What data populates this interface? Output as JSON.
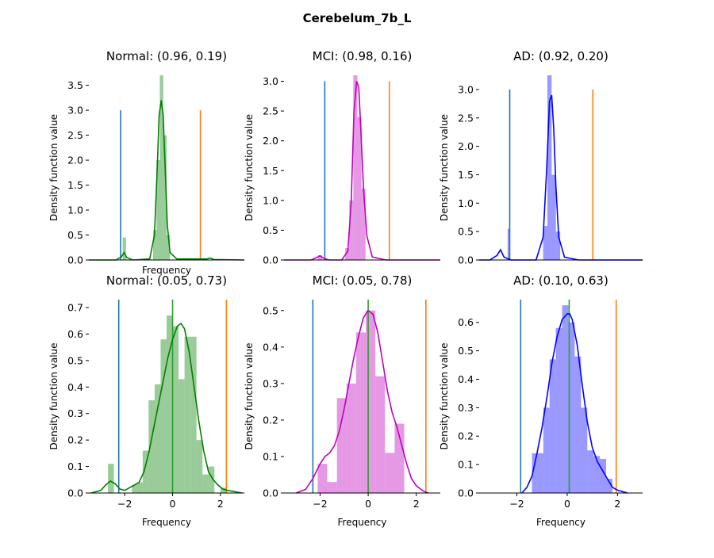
{
  "figure": {
    "title": "Cerebelum_7b_L"
  },
  "colors": {
    "normal": "#008000",
    "mci": "#bf00bf",
    "ad": "#0000ff",
    "vline_blue": "#1f77b4",
    "vline_orange": "#ff7f0e"
  },
  "chart_data": [
    {
      "type": "histogram_kde",
      "title": "Normal: (0.96, 0.19)",
      "xlabel": "Frequency",
      "ylabel": "Density function value",
      "color": "#008000",
      "xlim": [
        -0.1,
        2.2
      ],
      "ylim": [
        0,
        3.7
      ],
      "xticks": [],
      "yticks": [
        0.0,
        0.5,
        1.0,
        1.5,
        2.0,
        2.5,
        3.0,
        3.5
      ],
      "ytick_labels": [
        "0.0",
        "0.5",
        "1.0",
        "1.5",
        "2.0",
        "2.5",
        "3.0",
        "3.5"
      ],
      "vlines": [
        {
          "x": 0.37,
          "ymax": 3.0,
          "color": "#1f77b4"
        },
        {
          "x": 1.55,
          "ymax": 3.0,
          "color": "#ff7f0e"
        }
      ],
      "bars": [
        {
          "x0": 0.4,
          "x1": 0.45,
          "h": 0.45
        },
        {
          "x0": 0.85,
          "x1": 0.9,
          "h": 0.6
        },
        {
          "x0": 0.9,
          "x1": 0.95,
          "h": 2.0
        },
        {
          "x0": 0.95,
          "x1": 1.0,
          "h": 3.7
        },
        {
          "x0": 1.0,
          "x1": 1.05,
          "h": 2.5
        },
        {
          "x0": 1.05,
          "x1": 1.1,
          "h": 0.5
        }
      ],
      "kde": {
        "x": [
          -0.1,
          0.3,
          0.38,
          0.42,
          0.46,
          0.55,
          0.8,
          0.87,
          0.91,
          0.94,
          0.97,
          1.0,
          1.03,
          1.06,
          1.1,
          1.2,
          1.65,
          1.69,
          1.75,
          2.2
        ],
        "y": [
          0,
          0,
          0.06,
          0.15,
          0.05,
          0,
          0.02,
          0.5,
          1.8,
          2.9,
          3.2,
          2.9,
          1.8,
          0.7,
          0.15,
          0.02,
          0.02,
          0.04,
          0.01,
          0
        ]
      }
    },
    {
      "type": "histogram_kde",
      "title": "MCI: (0.98, 0.16)",
      "xlabel": "",
      "ylabel": "Density function value",
      "color": "#bf00bf",
      "xlim": [
        -0.1,
        2.2
      ],
      "ylim": [
        0,
        3.1
      ],
      "xticks": [],
      "yticks": [
        0.0,
        0.5,
        1.0,
        1.5,
        2.0,
        2.5,
        3.0
      ],
      "ytick_labels": [
        "0.0",
        "0.5",
        "1.0",
        "1.5",
        "2.0",
        "2.5",
        "3.0"
      ],
      "vlines": [
        {
          "x": 0.5,
          "ymax": 3.0,
          "color": "#1f77b4"
        },
        {
          "x": 1.45,
          "ymax": 3.0,
          "color": "#ff7f0e"
        }
      ],
      "bars": [
        {
          "x0": 0.4,
          "x1": 0.46,
          "h": 0.08
        },
        {
          "x0": 0.8,
          "x1": 0.86,
          "h": 0.2
        },
        {
          "x0": 0.86,
          "x1": 0.92,
          "h": 1.0
        },
        {
          "x0": 0.92,
          "x1": 0.98,
          "h": 3.1
        },
        {
          "x0": 0.98,
          "x1": 1.04,
          "h": 2.4
        },
        {
          "x0": 1.04,
          "x1": 1.1,
          "h": 1.2
        }
      ],
      "kde": {
        "x": [
          -0.1,
          0.3,
          0.38,
          0.43,
          0.48,
          0.56,
          0.75,
          0.84,
          0.89,
          0.93,
          0.97,
          1.0,
          1.03,
          1.07,
          1.12,
          1.2,
          1.4,
          2.2
        ],
        "y": [
          0,
          0,
          0.04,
          0.07,
          0.03,
          0,
          0,
          0.15,
          1.0,
          2.5,
          3.0,
          2.9,
          2.2,
          1.2,
          0.4,
          0.05,
          0,
          0
        ]
      }
    },
    {
      "type": "histogram_kde",
      "title": "AD: (0.92, 0.20)",
      "xlabel": "",
      "ylabel": "Density function value",
      "color": "#0000ff",
      "xlim": [
        -0.1,
        2.2
      ],
      "ylim": [
        0,
        3.25
      ],
      "xticks": [],
      "yticks": [
        0.0,
        0.5,
        1.0,
        1.5,
        2.0,
        2.5,
        3.0
      ],
      "ytick_labels": [
        "0.0",
        "0.5",
        "1.0",
        "1.5",
        "2.0",
        "2.5",
        "3.0"
      ],
      "vlines": [
        {
          "x": 0.33,
          "ymax": 3.0,
          "color": "#1f77b4"
        },
        {
          "x": 1.5,
          "ymax": 3.0,
          "color": "#ff7f0e"
        }
      ],
      "bars": [
        {
          "x0": 0.3,
          "x1": 0.33,
          "h": 0.55
        },
        {
          "x0": 0.8,
          "x1": 0.86,
          "h": 0.6
        },
        {
          "x0": 0.86,
          "x1": 0.92,
          "h": 3.25
        },
        {
          "x0": 0.92,
          "x1": 0.98,
          "h": 1.5
        },
        {
          "x0": 0.98,
          "x1": 1.04,
          "h": 0.5
        }
      ],
      "kde": {
        "x": [
          -0.1,
          0.05,
          0.15,
          0.2,
          0.25,
          0.35,
          0.7,
          0.8,
          0.85,
          0.89,
          0.92,
          0.95,
          0.98,
          1.02,
          1.1,
          1.3,
          2.2
        ],
        "y": [
          0,
          0,
          0.08,
          0.18,
          0.05,
          0,
          0,
          0.4,
          1.6,
          2.8,
          2.9,
          2.3,
          1.3,
          0.4,
          0.05,
          0,
          0
        ]
      }
    },
    {
      "type": "histogram_kde",
      "title": "Normal: (0.05, 0.73)",
      "xlabel": "Frequency",
      "ylabel": "Density function value",
      "color": "#008000",
      "xlim": [
        -3.5,
        3.0
      ],
      "ylim": [
        0,
        0.73
      ],
      "xticks": [
        -2,
        0,
        2
      ],
      "xtick_labels": [
        "−2",
        "0",
        "2"
      ],
      "yticks": [
        0.0,
        0.1,
        0.2,
        0.3,
        0.4,
        0.5,
        0.6,
        0.7
      ],
      "ytick_labels": [
        "0.0",
        "0.1",
        "0.2",
        "0.3",
        "0.4",
        "0.5",
        "0.6",
        "0.7"
      ],
      "vlines": [
        {
          "x": -2.25,
          "ymax": 0.73,
          "color": "#1f77b4"
        },
        {
          "x": 0.0,
          "ymax": 0.73,
          "color": "#2ca02c"
        },
        {
          "x": 2.25,
          "ymax": 0.73,
          "color": "#ff7f0e"
        }
      ],
      "bars": [
        {
          "x0": -2.7,
          "x1": -2.45,
          "h": 0.11
        },
        {
          "x0": -1.7,
          "x1": -1.5,
          "h": 0.03
        },
        {
          "x0": -1.5,
          "x1": -1.25,
          "h": 0.04
        },
        {
          "x0": -1.25,
          "x1": -1.0,
          "h": 0.16
        },
        {
          "x0": -1.0,
          "x1": -0.75,
          "h": 0.35
        },
        {
          "x0": -0.75,
          "x1": -0.5,
          "h": 0.41
        },
        {
          "x0": -0.5,
          "x1": -0.25,
          "h": 0.58
        },
        {
          "x0": -0.25,
          "x1": 0.0,
          "h": 0.67
        },
        {
          "x0": 0.0,
          "x1": 0.25,
          "h": 0.63
        },
        {
          "x0": 0.25,
          "x1": 0.5,
          "h": 0.43
        },
        {
          "x0": 0.5,
          "x1": 0.75,
          "h": 0.59
        },
        {
          "x0": 0.75,
          "x1": 1.0,
          "h": 0.59
        },
        {
          "x0": 1.0,
          "x1": 1.25,
          "h": 0.2
        },
        {
          "x0": 1.25,
          "x1": 1.5,
          "h": 0.07
        },
        {
          "x0": 1.5,
          "x1": 1.75,
          "h": 0.1
        },
        {
          "x0": 2.0,
          "x1": 2.25,
          "h": 0.02
        }
      ],
      "kde": {
        "x": [
          -3.4,
          -3.0,
          -2.8,
          -2.6,
          -2.4,
          -2.2,
          -2.0,
          -1.8,
          -1.6,
          -1.4,
          -1.2,
          -1.0,
          -0.8,
          -0.6,
          -0.4,
          -0.2,
          0.0,
          0.2,
          0.35,
          0.5,
          0.7,
          0.9,
          1.1,
          1.3,
          1.5,
          1.7,
          1.9,
          2.1,
          2.3,
          2.6,
          2.9
        ],
        "y": [
          0.0,
          0.01,
          0.03,
          0.045,
          0.035,
          0.015,
          0.01,
          0.02,
          0.03,
          0.04,
          0.08,
          0.15,
          0.24,
          0.33,
          0.42,
          0.51,
          0.58,
          0.63,
          0.64,
          0.62,
          0.53,
          0.4,
          0.27,
          0.16,
          0.08,
          0.05,
          0.03,
          0.015,
          0.01,
          0.005,
          0.0
        ]
      }
    },
    {
      "type": "histogram_kde",
      "title": "MCI: (0.05, 0.78)",
      "xlabel": "Frequency",
      "ylabel": "Density function value",
      "color": "#bf00bf",
      "xlim": [
        -3.5,
        3.0
      ],
      "ylim": [
        0,
        0.53
      ],
      "xticks": [
        -2,
        0,
        2
      ],
      "xtick_labels": [
        "−2",
        "0",
        "2"
      ],
      "yticks": [
        0.0,
        0.1,
        0.2,
        0.3,
        0.4,
        0.5
      ],
      "ytick_labels": [
        "0.0",
        "0.1",
        "0.2",
        "0.3",
        "0.4",
        "0.5"
      ],
      "vlines": [
        {
          "x": -2.3,
          "ymax": 0.53,
          "color": "#1f77b4"
        },
        {
          "x": 0.0,
          "ymax": 0.53,
          "color": "#2ca02c"
        },
        {
          "x": 2.4,
          "ymax": 0.53,
          "color": "#ff7f0e"
        }
      ],
      "bars": [
        {
          "x0": -2.1,
          "x1": -1.7,
          "h": 0.08
        },
        {
          "x0": -1.7,
          "x1": -1.3,
          "h": 0.03
        },
        {
          "x0": -1.3,
          "x1": -0.9,
          "h": 0.26
        },
        {
          "x0": -0.9,
          "x1": -0.5,
          "h": 0.3
        },
        {
          "x0": -0.5,
          "x1": -0.1,
          "h": 0.44
        },
        {
          "x0": -0.1,
          "x1": 0.3,
          "h": 0.5
        },
        {
          "x0": 0.3,
          "x1": 0.7,
          "h": 0.32
        },
        {
          "x0": 0.7,
          "x1": 1.1,
          "h": 0.11
        },
        {
          "x0": 1.1,
          "x1": 1.5,
          "h": 0.19
        }
      ],
      "kde": {
        "x": [
          -3.0,
          -2.6,
          -2.3,
          -2.0,
          -1.8,
          -1.6,
          -1.4,
          -1.2,
          -1.0,
          -0.8,
          -0.6,
          -0.4,
          -0.2,
          0.0,
          0.2,
          0.4,
          0.6,
          0.8,
          1.0,
          1.2,
          1.4,
          1.6,
          1.8,
          2.0,
          2.3,
          2.5
        ],
        "y": [
          0.0,
          0.01,
          0.04,
          0.08,
          0.1,
          0.11,
          0.13,
          0.17,
          0.23,
          0.3,
          0.37,
          0.43,
          0.48,
          0.5,
          0.49,
          0.44,
          0.36,
          0.28,
          0.22,
          0.18,
          0.13,
          0.08,
          0.04,
          0.02,
          0.005,
          0.0
        ]
      }
    },
    {
      "type": "histogram_kde",
      "title": "AD: (0.10, 0.63)",
      "xlabel": "Frequency",
      "ylabel": "Density function value",
      "color": "#0000ff",
      "xlim": [
        -3.5,
        3.0
      ],
      "ylim": [
        0,
        0.68
      ],
      "xticks": [
        -2,
        0,
        2
      ],
      "xtick_labels": [
        "−2",
        "0",
        "2"
      ],
      "yticks": [
        0.0,
        0.1,
        0.2,
        0.3,
        0.4,
        0.5,
        0.6
      ],
      "ytick_labels": [
        "0.0",
        "0.1",
        "0.2",
        "0.3",
        "0.4",
        "0.5",
        "0.6"
      ],
      "vlines": [
        {
          "x": -1.85,
          "ymax": 0.68,
          "color": "#1f77b4"
        },
        {
          "x": 0.08,
          "ymax": 0.68,
          "color": "#2ca02c"
        },
        {
          "x": 1.95,
          "ymax": 0.68,
          "color": "#ff7f0e"
        }
      ],
      "bars": [
        {
          "x0": -1.4,
          "x1": -1.2,
          "h": 0.14
        },
        {
          "x0": -1.2,
          "x1": -0.95,
          "h": 0.14
        },
        {
          "x0": -0.95,
          "x1": -0.7,
          "h": 0.3
        },
        {
          "x0": -0.7,
          "x1": -0.45,
          "h": 0.47
        },
        {
          "x0": -0.45,
          "x1": -0.2,
          "h": 0.58
        },
        {
          "x0": -0.2,
          "x1": 0.05,
          "h": 0.66
        },
        {
          "x0": 0.05,
          "x1": 0.3,
          "h": 0.6
        },
        {
          "x0": 0.3,
          "x1": 0.55,
          "h": 0.48
        },
        {
          "x0": 0.55,
          "x1": 0.8,
          "h": 0.3
        },
        {
          "x0": 0.8,
          "x1": 1.05,
          "h": 0.15
        },
        {
          "x0": 1.05,
          "x1": 1.3,
          "h": 0.13
        },
        {
          "x0": 1.3,
          "x1": 1.55,
          "h": 0.12
        },
        {
          "x0": 1.55,
          "x1": 1.8,
          "h": 0.05
        }
      ],
      "kde": {
        "x": [
          -1.8,
          -1.6,
          -1.4,
          -1.2,
          -1.0,
          -0.8,
          -0.6,
          -0.4,
          -0.2,
          0.0,
          0.1,
          0.2,
          0.4,
          0.6,
          0.8,
          1.0,
          1.2,
          1.4,
          1.6,
          1.8,
          2.0,
          2.2,
          2.4
        ],
        "y": [
          0.0,
          0.02,
          0.06,
          0.14,
          0.23,
          0.34,
          0.46,
          0.55,
          0.61,
          0.63,
          0.63,
          0.61,
          0.52,
          0.38,
          0.25,
          0.16,
          0.11,
          0.08,
          0.05,
          0.02,
          0.01,
          0.005,
          0.0
        ]
      }
    }
  ]
}
